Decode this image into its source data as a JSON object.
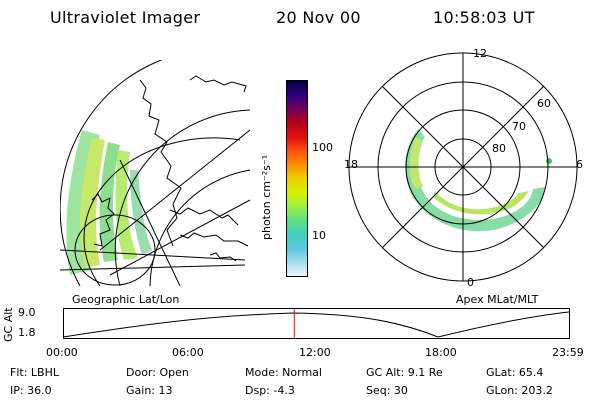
{
  "header": {
    "title": "Ultraviolet Imager",
    "date": "20 Nov 00",
    "time": "10:58:03 UT"
  },
  "colorbar": {
    "unit_label": "photon cm⁻²s⁻¹",
    "ticks": [
      "100",
      "10"
    ],
    "colors": [
      "#e8f4f8",
      "#a8dcf0",
      "#5cc8e0",
      "#40d0c0",
      "#60e080",
      "#a0f040",
      "#d8f000",
      "#f0d000",
      "#ff9000",
      "#ff5010",
      "#e01010",
      "#b00020",
      "#700060",
      "#300080",
      "#000040"
    ]
  },
  "left_panel": {
    "caption": "Geographic Lat/Lon"
  },
  "right_panel": {
    "caption": "Apex MLat/MLT",
    "mlt_labels": {
      "top": "12",
      "left": "18",
      "right": "6",
      "bottom": "0"
    },
    "lat_labels": [
      "60",
      "70",
      "80"
    ]
  },
  "altitude_plot": {
    "axis_label": "GC Alt",
    "y_ticks": [
      "9.0",
      "1.8"
    ],
    "time_ticks": [
      "00:00",
      "06:00",
      "12:00",
      "18:00",
      "23:59"
    ],
    "current_time_hours": 10.97,
    "marker_color": "#ff0000"
  },
  "info": {
    "row1": [
      "Flt: LBHL",
      "Door: Open",
      "Mode: Normal",
      "GC Alt: 9.1 Re",
      "GLat:  65.4"
    ],
    "row2": [
      "IP: 36.0",
      "Gain: 13",
      "Dsp:    -4.3",
      "Seq: 30",
      "GLon: 203.2"
    ]
  }
}
